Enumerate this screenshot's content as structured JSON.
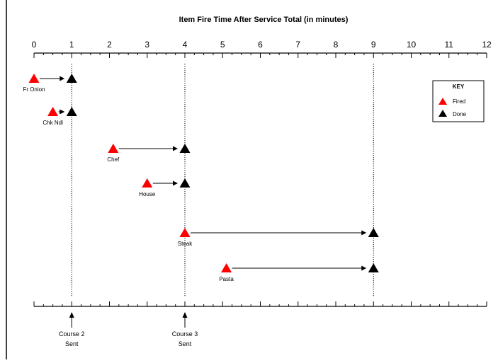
{
  "title": "Item Fire Time After Service Total (in minutes)",
  "axis": {
    "min": 0,
    "max": 12,
    "ticks": [
      "0",
      "1",
      "2",
      "3",
      "4",
      "5",
      "6",
      "7",
      "8",
      "9",
      "10",
      "11",
      "12"
    ],
    "minor_step": 0.25
  },
  "items": [
    {
      "label": "Fr Onion",
      "fired": 0,
      "done": 1
    },
    {
      "label": "Chk Ndl",
      "fired": 0.5,
      "done": 1
    },
    {
      "label": "Chef",
      "fired": 2.1,
      "done": 4
    },
    {
      "label": "House",
      "fired": 3,
      "done": 4
    },
    {
      "label": "Steak",
      "fired": 4,
      "done": 9
    },
    {
      "label": "Pasta",
      "fired": 5.1,
      "done": 9
    }
  ],
  "guides": [
    {
      "at": 1,
      "label_line1": "Course 2",
      "label_line2": "Sent"
    },
    {
      "at": 4,
      "label_line1": "Course 3",
      "label_line2": "Sent"
    },
    {
      "at": 9
    }
  ],
  "key": {
    "title": "KEY",
    "fired_label": "Fired",
    "done_label": "Done"
  },
  "colors": {
    "fired": "#ff0000",
    "done": "#000000",
    "line": "#000000"
  }
}
